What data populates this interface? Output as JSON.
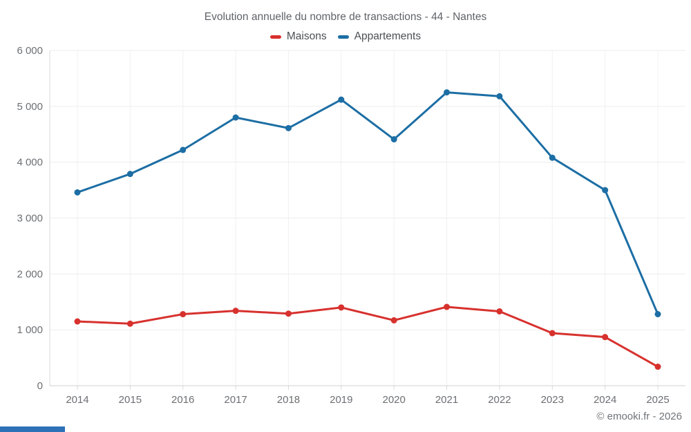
{
  "header": {
    "title": "Evolution annuelle du nombre de transactions - 44 - Nantes"
  },
  "footer": {
    "watermark": "© emooki.fr - 2026"
  },
  "decorations": {
    "bottom_bar_color": "#2d71b8"
  },
  "chart_data": {
    "type": "line",
    "title": "Evolution annuelle du nombre de transactions - 44 - Nantes",
    "categories": [
      "2014",
      "2015",
      "2016",
      "2017",
      "2018",
      "2019",
      "2020",
      "2021",
      "2022",
      "2023",
      "2024",
      "2025"
    ],
    "series": [
      {
        "name": "Maisons",
        "color": "#d7312e",
        "values": [
          1150,
          1110,
          1280,
          1340,
          1290,
          1400,
          1170,
          1410,
          1330,
          940,
          870,
          340
        ]
      },
      {
        "name": "Appartements",
        "color": "#1c6ea4",
        "values": [
          3460,
          3790,
          4220,
          4800,
          4610,
          5120,
          4410,
          5250,
          5180,
          4080,
          3500,
          1280
        ]
      }
    ],
    "xlabel": "",
    "ylabel": "",
    "ylim": [
      0,
      6000
    ],
    "ytick_values": [
      0,
      1000,
      2000,
      3000,
      4000,
      5000,
      6000
    ],
    "ytick_labels": [
      "0",
      "1 000",
      "2 000",
      "3 000",
      "4 000",
      "5 000",
      "6 000"
    ],
    "grid": true,
    "legend_position": "top",
    "marker_radius": 4.5,
    "line_width": 3
  }
}
